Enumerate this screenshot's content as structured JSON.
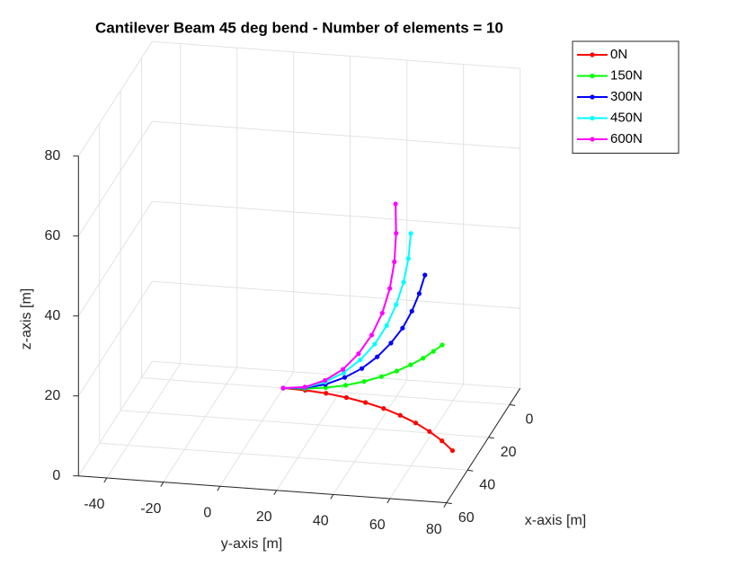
{
  "chart_data": {
    "type": "line3d",
    "title": "Cantilever Beam 45 deg bend - Number of elements = 10",
    "xlabel": "x-axis [m]",
    "ylabel": "y-axis [m]",
    "zlabel": "z-axis [m]",
    "xlim": [
      -10,
      60
    ],
    "xticks": [
      0,
      20,
      40,
      60
    ],
    "ylim": [
      -50,
      80
    ],
    "yticks": [
      -40,
      -20,
      0,
      20,
      40,
      60,
      80
    ],
    "zlim": [
      0,
      80
    ],
    "zticks": [
      0,
      20,
      40,
      60,
      80
    ],
    "grid": true,
    "legend": "northeast-outside",
    "series": [
      {
        "name": "0N",
        "color": "#ff0000",
        "x": [
          0,
          0.3,
          1.2,
          2.8,
          4.9,
          7.6,
          10.9,
          14.7,
          19.1,
          24.0,
          29.3
        ],
        "y": [
          0,
          7.9,
          15.6,
          23.4,
          30.9,
          38.3,
          45.4,
          52.3,
          58.8,
          65.0,
          70.7
        ],
        "z": [
          0,
          0,
          0,
          0,
          0,
          0,
          0,
          0,
          0,
          0,
          0
        ]
      },
      {
        "name": "150N",
        "color": "#00ff00",
        "x": [
          0,
          0.3,
          1.2,
          2.7,
          4.8,
          7.3,
          10.4,
          13.9,
          17.7,
          21.9,
          26.4
        ],
        "y": [
          0,
          7.8,
          15.5,
          23.1,
          30.4,
          37.4,
          44.0,
          50.2,
          56.0,
          61.2,
          66.0
        ],
        "z": [
          0,
          0.4,
          1.4,
          3.0,
          5.2,
          7.8,
          10.8,
          14.1,
          17.6,
          21.3,
          25.0
        ]
      },
      {
        "name": "300N",
        "color": "#0000ff",
        "x": [
          0,
          0.3,
          1.2,
          2.6,
          4.6,
          6.9,
          9.5,
          12.4,
          15.4,
          18.4,
          21.3
        ],
        "y": [
          0,
          7.8,
          15.4,
          22.7,
          29.5,
          35.8,
          41.6,
          46.8,
          51.2,
          54.9,
          58.0
        ],
        "z": [
          0,
          0.6,
          2.2,
          4.9,
          8.3,
          12.5,
          17.3,
          22.5,
          28.2,
          34.0,
          40.0
        ]
      },
      {
        "name": "450N",
        "color": "#00ffff",
        "x": [
          0,
          0.3,
          1.2,
          2.6,
          4.5,
          6.8,
          9.5,
          12.3,
          15.2,
          18.2,
          21.0
        ],
        "y": [
          0,
          7.8,
          15.3,
          22.4,
          28.9,
          34.9,
          40.1,
          44.5,
          48.2,
          51.0,
          52.9
        ],
        "z": [
          0,
          0.7,
          2.8,
          6.1,
          10.4,
          15.6,
          21.6,
          28.2,
          35.2,
          42.5,
          50.0
        ]
      },
      {
        "name": "600N",
        "color": "#ff00ff",
        "x": [
          0,
          0.3,
          1.2,
          2.6,
          4.5,
          6.8,
          9.4,
          12.2,
          15.1,
          18.0,
          20.7
        ],
        "y": [
          0,
          7.8,
          15.2,
          22.1,
          28.3,
          33.8,
          38.5,
          42.2,
          44.9,
          46.6,
          47.4
        ],
        "z": [
          0,
          0.8,
          3.2,
          6.9,
          11.9,
          17.8,
          24.6,
          32.1,
          40.1,
          48.5,
          57.0
        ]
      }
    ]
  }
}
